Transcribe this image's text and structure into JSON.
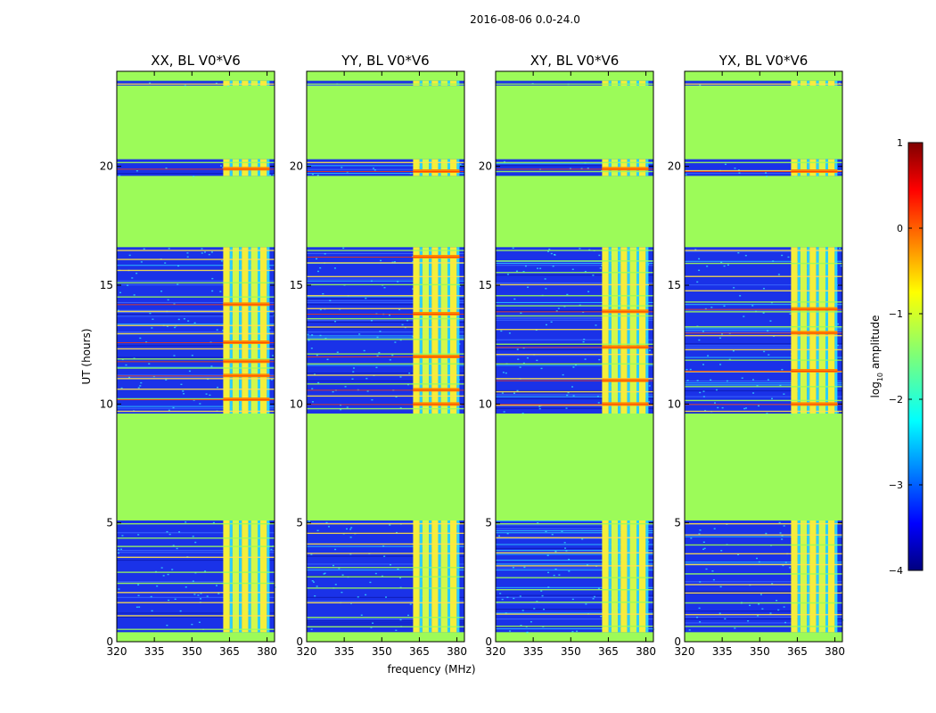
{
  "figure_title": "2016-08-06 0.0-24.0",
  "colors": {
    "flagged": "#9cfb59",
    "background_noise": "#1a32e8",
    "rfi_line": "#ffcc00",
    "frame": "#000000"
  },
  "chart_data": [
    {
      "type": "heatmap",
      "title": "XX, BL V0*V6",
      "xlabel": "",
      "ylabel": "UT (hours)",
      "xlim": [
        320,
        383
      ],
      "ylim": [
        0,
        24
      ],
      "xticks": [
        320,
        335,
        350,
        365,
        380
      ],
      "yticks": [
        0,
        5,
        10,
        15,
        20
      ],
      "strong_band_mhz": [
        362.5,
        381
      ],
      "flagged_time_ranges_hours": [
        [
          0,
          0.4
        ],
        [
          5.1,
          9.6
        ],
        [
          16.6,
          19.6
        ],
        [
          20.3,
          23.4
        ],
        [
          23.6,
          24
        ]
      ],
      "valid_time_ranges_hours": [
        [
          0.4,
          5.1
        ],
        [
          9.6,
          16.6
        ],
        [
          19.6,
          20.3
        ],
        [
          23.4,
          23.6
        ]
      ],
      "hot_hours": [
        10.2,
        11.2,
        11.8,
        12.6,
        14.2,
        19.9
      ]
    },
    {
      "type": "heatmap",
      "title": "YY, BL V0*V6",
      "xlabel": "frequency (MHz)",
      "ylabel": "",
      "xlim": [
        320,
        383
      ],
      "ylim": [
        0,
        24
      ],
      "xticks": [
        320,
        335,
        350,
        365,
        380
      ],
      "yticks": [
        0,
        5,
        10,
        15,
        20
      ],
      "strong_band_mhz": [
        362.5,
        381
      ],
      "flagged_time_ranges_hours": [
        [
          0,
          0.4
        ],
        [
          5.1,
          9.6
        ],
        [
          16.6,
          19.6
        ],
        [
          20.3,
          23.4
        ],
        [
          23.6,
          24
        ]
      ],
      "valid_time_ranges_hours": [
        [
          0.4,
          5.1
        ],
        [
          9.6,
          16.6
        ],
        [
          19.6,
          20.3
        ],
        [
          23.4,
          23.6
        ]
      ],
      "hot_hours": [
        10.0,
        10.6,
        12.0,
        13.8,
        16.2,
        19.8
      ]
    },
    {
      "type": "heatmap",
      "title": "XY, BL V0*V6",
      "xlabel": "",
      "ylabel": "",
      "xlim": [
        320,
        383
      ],
      "ylim": [
        0,
        24
      ],
      "xticks": [
        320,
        335,
        350,
        365,
        380
      ],
      "yticks": [
        0,
        5,
        10,
        15,
        20
      ],
      "strong_band_mhz": [
        362.5,
        381
      ],
      "flagged_time_ranges_hours": [
        [
          0,
          0.4
        ],
        [
          5.1,
          9.6
        ],
        [
          16.6,
          19.6
        ],
        [
          20.3,
          23.4
        ],
        [
          23.6,
          24
        ]
      ],
      "valid_time_ranges_hours": [
        [
          0.4,
          5.1
        ],
        [
          9.6,
          16.6
        ],
        [
          19.6,
          20.3
        ],
        [
          23.4,
          23.6
        ]
      ],
      "hot_hours": [
        10.0,
        11.0,
        12.4,
        13.9,
        19.9
      ]
    },
    {
      "type": "heatmap",
      "title": "YX, BL V0*V6",
      "xlabel": "",
      "ylabel": "",
      "xlim": [
        320,
        383
      ],
      "ylim": [
        0,
        24
      ],
      "xticks": [
        320,
        335,
        350,
        365,
        380
      ],
      "yticks": [
        0,
        5,
        10,
        15,
        20
      ],
      "strong_band_mhz": [
        362.5,
        381
      ],
      "flagged_time_ranges_hours": [
        [
          0,
          0.4
        ],
        [
          5.1,
          9.6
        ],
        [
          16.6,
          19.6
        ],
        [
          20.3,
          23.4
        ],
        [
          23.6,
          24
        ]
      ],
      "valid_time_ranges_hours": [
        [
          0.4,
          5.1
        ],
        [
          9.6,
          16.6
        ],
        [
          19.6,
          20.3
        ],
        [
          23.4,
          23.6
        ]
      ],
      "hot_hours": [
        10.0,
        11.4,
        13.0,
        14.0,
        19.8
      ]
    }
  ],
  "colorbar": {
    "label": "log",
    "label_subscript": "10",
    "label_rest": " amplitude",
    "range": [
      -4,
      1
    ],
    "ticks": [
      "1",
      "0",
      "−1",
      "−2",
      "−3",
      "−4"
    ],
    "tick_values": [
      1,
      0,
      -1,
      -2,
      -3,
      -4
    ]
  }
}
